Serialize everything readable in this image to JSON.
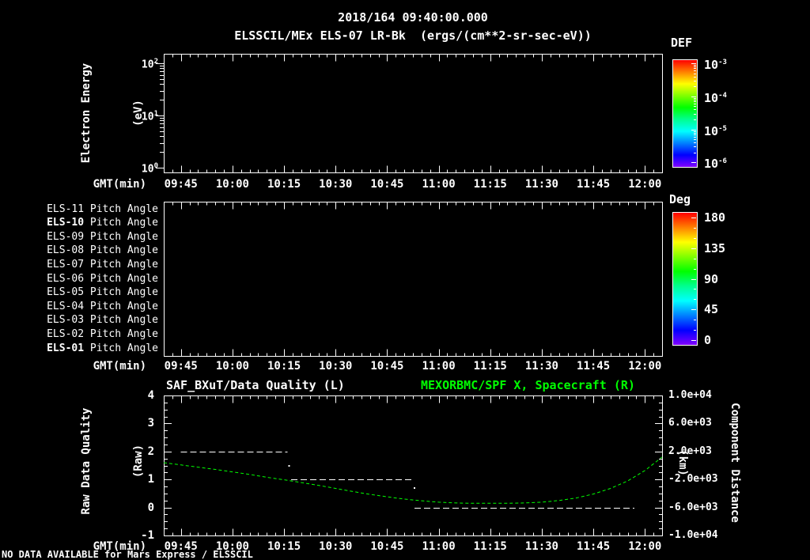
{
  "header": {
    "timestamp": "2018/164 09:40:00.000",
    "title": "ELSSCIL/MEx ELS-07 LR-Bk  (ergs/(cm**2-sr-sec-eV))"
  },
  "footer": {
    "notice": "NO DATA AVAILABLE for Mars Express / ELSSCIL"
  },
  "colors": {
    "background": "#000000",
    "foreground": "#ffffff",
    "accent_green": "#00ff00",
    "rainbow": [
      "#ff0000",
      "#ff8000",
      "#ffff00",
      "#80ff00",
      "#00ff00",
      "#00ff90",
      "#00ffff",
      "#0080ff",
      "#0000ff",
      "#8000ff"
    ]
  },
  "time_axis": {
    "label": "GMT(min)",
    "start": "09:40",
    "end": "12:05",
    "total_minutes": 145,
    "minor_step_minutes": 2.5,
    "ticks": [
      {
        "minute": 5,
        "label": "09:45"
      },
      {
        "minute": 20,
        "label": "10:00"
      },
      {
        "minute": 35,
        "label": "10:15"
      },
      {
        "minute": 50,
        "label": "10:30"
      },
      {
        "minute": 65,
        "label": "10:45"
      },
      {
        "minute": 80,
        "label": "11:00"
      },
      {
        "minute": 95,
        "label": "11:15"
      },
      {
        "minute": 110,
        "label": "11:30"
      },
      {
        "minute": 125,
        "label": "11:45"
      },
      {
        "minute": 140,
        "label": "12:00"
      }
    ]
  },
  "spectrogram_panel": {
    "ylabel_line1": "Electron Energy",
    "ylabel_line2": "(eV)",
    "yticks": [
      "10^0",
      "10^1",
      "10^2"
    ],
    "colorbar": {
      "title": "DEF",
      "ticks": [
        "10^-3",
        "10^-4",
        "10^-5",
        "10^-6"
      ]
    }
  },
  "pitch_panel": {
    "rows": [
      {
        "prefix": "ELS-11",
        "suffix": " Pitch Angle",
        "bold": false
      },
      {
        "prefix": "ELS-10",
        "suffix": " Pitch Angle",
        "bold": true
      },
      {
        "prefix": "ELS-09",
        "suffix": " Pitch Angle",
        "bold": false
      },
      {
        "prefix": "ELS-08",
        "suffix": " Pitch Angle",
        "bold": false
      },
      {
        "prefix": "ELS-07",
        "suffix": " Pitch Angle",
        "bold": false
      },
      {
        "prefix": "ELS-06",
        "suffix": " Pitch Angle",
        "bold": false
      },
      {
        "prefix": "ELS-05",
        "suffix": " Pitch Angle",
        "bold": false
      },
      {
        "prefix": "ELS-04",
        "suffix": " Pitch Angle",
        "bold": false
      },
      {
        "prefix": "ELS-03",
        "suffix": " Pitch Angle",
        "bold": false
      },
      {
        "prefix": "ELS-02",
        "suffix": " Pitch Angle",
        "bold": false
      },
      {
        "prefix": "ELS-01",
        "suffix": " Pitch Angle",
        "bold": true
      }
    ],
    "colorbar": {
      "title": "Deg",
      "ticks": [
        "180",
        "135",
        "90",
        "45",
        "0"
      ]
    }
  },
  "quality_panel": {
    "title_left": "SAF_BXuT/Data Quality (L)",
    "title_right": "MEXORBMC/SPF X, Spacecraft (R)",
    "ylabel_left_line1": "Raw Data Quality",
    "ylabel_left_line2": "(Raw)",
    "ylabel_right_line1": "Component Distance",
    "ylabel_right_line2": "(km)",
    "yticks_left": [
      "4",
      "3",
      "2",
      "1",
      "0",
      "-1"
    ],
    "yticks_right": [
      "1.0e+04",
      "6.0e+03",
      "2.0e+03",
      "-2.0e+03",
      "-6.0e+03",
      "-1.0e+04"
    ]
  },
  "chart_data": [
    {
      "type": "heatmap",
      "panel": "top-spectrogram",
      "title": "ELSSCIL/MEx ELS-07 LR-Bk  (ergs/(cm**2-sr-sec-eV))",
      "xlabel": "GMT(min)",
      "ylabel": "Electron Energy (eV)",
      "y_scale": "log",
      "y_ticks": [
        1,
        10,
        100
      ],
      "x_range": [
        "09:40",
        "12:05"
      ],
      "x_tick_labels": [
        "09:45",
        "10:00",
        "10:15",
        "10:30",
        "10:45",
        "11:00",
        "11:15",
        "11:30",
        "11:45",
        "12:00"
      ],
      "colorbar": {
        "label": "DEF",
        "scale": "log",
        "range": [
          1e-06,
          0.001
        ],
        "tick_values": [
          0.001,
          0.0001,
          1e-05,
          1e-06
        ]
      },
      "values": [],
      "note": "empty panel - no data available"
    },
    {
      "type": "heatmap",
      "panel": "middle-pitch-angle",
      "xlabel": "GMT(min)",
      "rows": [
        "ELS-11 Pitch Angle",
        "ELS-10 Pitch Angle",
        "ELS-09 Pitch Angle",
        "ELS-08 Pitch Angle",
        "ELS-07 Pitch Angle",
        "ELS-06 Pitch Angle",
        "ELS-05 Pitch Angle",
        "ELS-04 Pitch Angle",
        "ELS-03 Pitch Angle",
        "ELS-02 Pitch Angle",
        "ELS-01 Pitch Angle"
      ],
      "x_range": [
        "09:40",
        "12:05"
      ],
      "x_tick_labels": [
        "09:45",
        "10:00",
        "10:15",
        "10:30",
        "10:45",
        "11:00",
        "11:15",
        "11:30",
        "11:45",
        "12:00"
      ],
      "colorbar": {
        "label": "Deg",
        "range": [
          0,
          180
        ],
        "tick_values": [
          180,
          135,
          90,
          45,
          0
        ]
      },
      "values": [],
      "note": "empty panel - no data available"
    },
    {
      "type": "line",
      "panel": "bottom-timeseries",
      "xlabel": "GMT(min)",
      "x_range": [
        "09:40",
        "12:05"
      ],
      "x_tick_labels": [
        "09:45",
        "10:00",
        "10:15",
        "10:30",
        "10:45",
        "11:00",
        "11:15",
        "11:30",
        "11:45",
        "12:00"
      ],
      "left_axis": {
        "label": "Raw Data Quality (Raw)",
        "range": [
          -1,
          4
        ],
        "ticks": [
          4,
          3,
          2,
          1,
          0,
          -1
        ]
      },
      "right_axis": {
        "label": "Component Distance (km)",
        "range": [
          -10000,
          10000
        ],
        "ticks": [
          10000,
          6000,
          2000,
          -2000,
          -6000,
          -10000
        ]
      },
      "series": [
        {
          "name": "SAF_BXuT/Data Quality (L)",
          "axis": "left",
          "color": "#ffffff",
          "style": "dashed-step",
          "segments": [
            {
              "start": "09:45",
              "end": "10:16",
              "start_min": 5,
              "end_min": 36,
              "value": 2
            },
            {
              "start": "10:17",
              "end": "10:53",
              "start_min": 37,
              "end_min": 73,
              "value": 1
            },
            {
              "start": "10:53",
              "end": "11:57",
              "start_min": 73,
              "end_min": 137,
              "value": 0
            }
          ],
          "transition_dots": [
            {
              "minute": 36.5,
              "value": 1.48
            },
            {
              "minute": 73,
              "value": 0.69
            }
          ]
        },
        {
          "name": "MEXORBMC/SPF X, Spacecraft (R)",
          "axis": "right",
          "color": "#00ff00",
          "style": "dashed",
          "points_format": "[minutes after 09:40, km]",
          "points": [
            [
              0,
              400
            ],
            [
              5,
              80
            ],
            [
              10,
              -240
            ],
            [
              15,
              -560
            ],
            [
              20,
              -920
            ],
            [
              25,
              -1280
            ],
            [
              30,
              -1680
            ],
            [
              35,
              -2040
            ],
            [
              40,
              -2440
            ],
            [
              45,
              -2840
            ],
            [
              50,
              -3280
            ],
            [
              55,
              -3720
            ],
            [
              60,
              -4120
            ],
            [
              65,
              -4480
            ],
            [
              70,
              -4800
            ],
            [
              75,
              -5040
            ],
            [
              80,
              -5240
            ],
            [
              85,
              -5360
            ],
            [
              90,
              -5400
            ],
            [
              95,
              -5400
            ],
            [
              100,
              -5400
            ],
            [
              105,
              -5360
            ],
            [
              110,
              -5240
            ],
            [
              115,
              -5000
            ],
            [
              120,
              -4640
            ],
            [
              125,
              -4080
            ],
            [
              130,
              -3280
            ],
            [
              135,
              -2200
            ],
            [
              140,
              -720
            ],
            [
              145,
              1200
            ]
          ]
        }
      ]
    }
  ]
}
